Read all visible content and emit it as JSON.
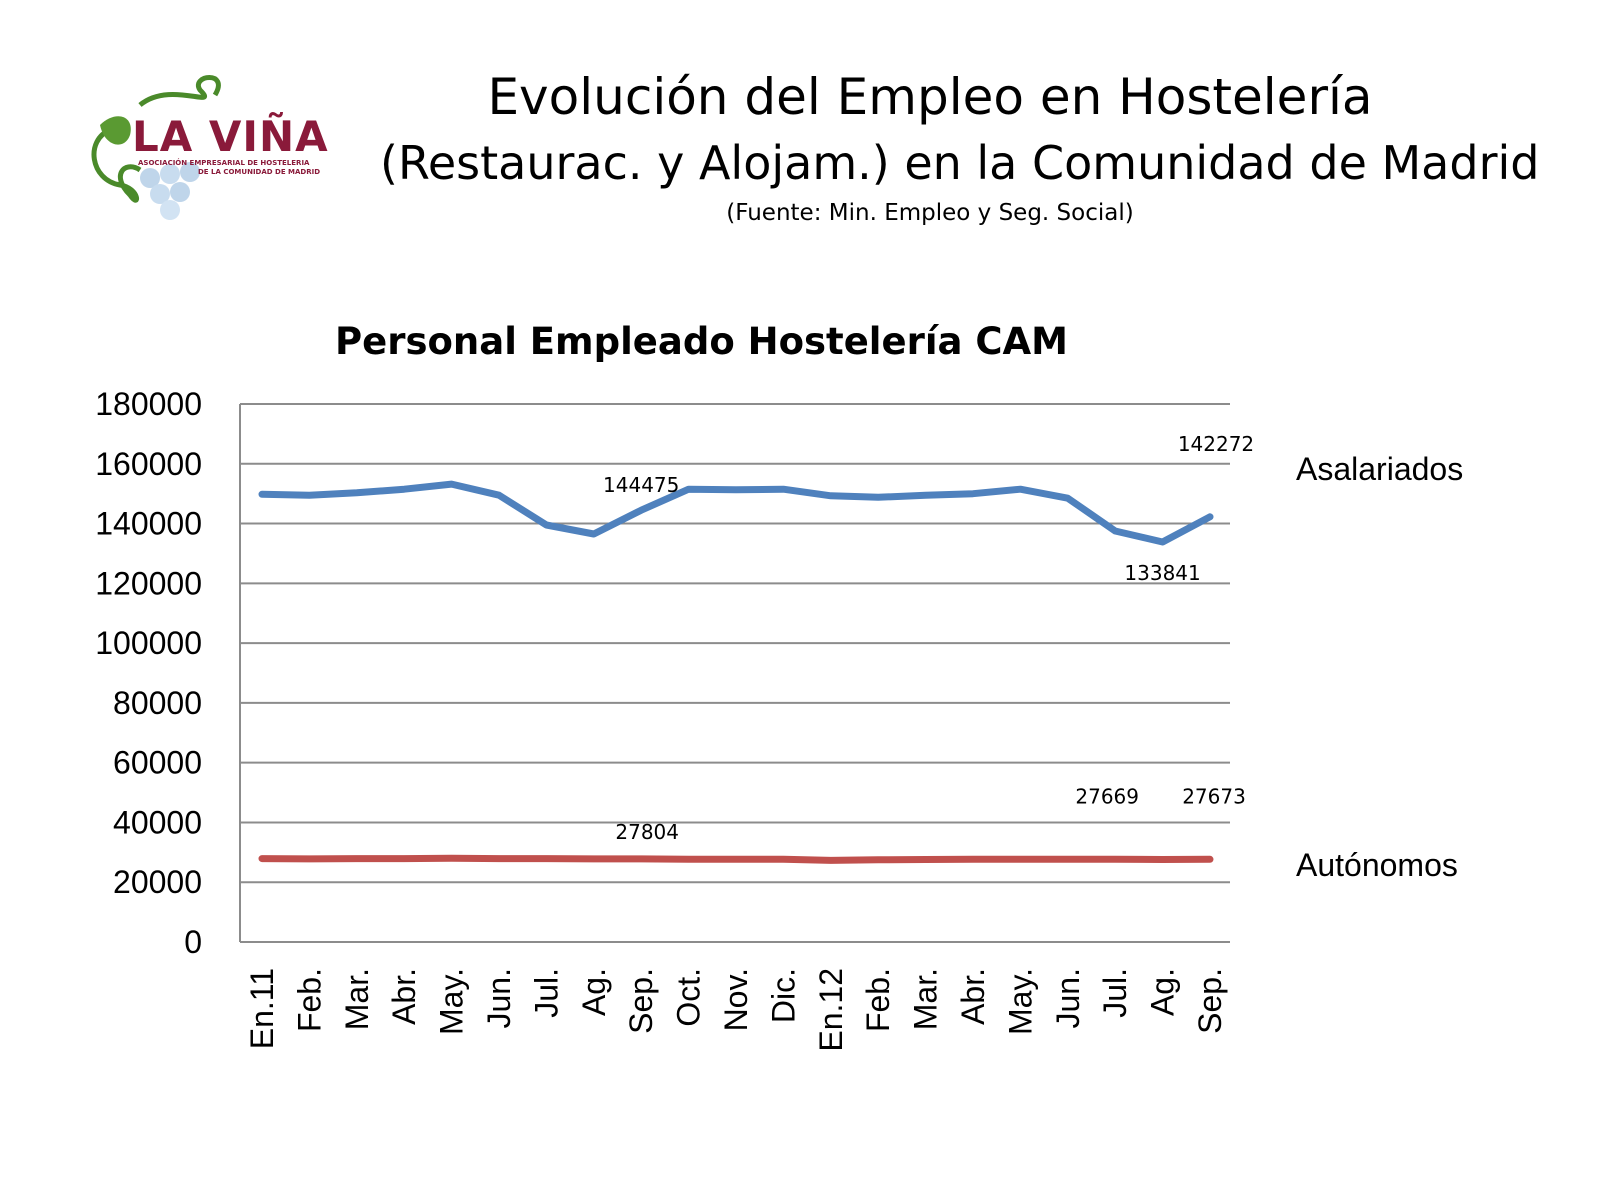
{
  "logo": {
    "name": "LA VIÑA",
    "subtitle_line1": "ASOCIACIÓN EMPRESARIAL DE HOSTELERIA",
    "subtitle_line2": "DE LA COMUNIDAD DE MADRID"
  },
  "header": {
    "title_line1": "Evolución del Empleo en Hostelería",
    "title_line2": "(Restaurac. y Alojam.) en la Comunidad de Madrid",
    "source": "(Fuente: Min. Empleo y Seg. Social)"
  },
  "chart_data": {
    "type": "line",
    "title": "Personal Empleado Hostelería CAM",
    "xlabel": "",
    "ylabel": "",
    "ylim": [
      0,
      180000
    ],
    "yticks": [
      0,
      20000,
      40000,
      60000,
      80000,
      100000,
      120000,
      140000,
      160000,
      180000
    ],
    "grid": true,
    "categories": [
      "En.11",
      "Feb.",
      "Mar.",
      "Abr.",
      "May.",
      "Jun.",
      "Jul.",
      "Ag.",
      "Sep.",
      "Oct.",
      "Nov.",
      "Dic.",
      "En.12",
      "Feb.",
      "Mar.",
      "Abr.",
      "May.",
      "Jun.",
      "Jul.",
      "Ag.",
      "Sep."
    ],
    "series": [
      {
        "name": "Asalariados",
        "color": "#4f81bd",
        "values": [
          149800,
          149500,
          150300,
          151500,
          153200,
          149500,
          139500,
          136500,
          144475,
          151500,
          151300,
          151500,
          149300,
          148800,
          149500,
          150000,
          151500,
          148500,
          137500,
          133841,
          142272
        ],
        "data_labels": [
          {
            "index": 8,
            "text": "144475"
          },
          {
            "index": 19,
            "text": "133841"
          },
          {
            "index": 20,
            "text": "142272"
          }
        ]
      },
      {
        "name": "Autónomos",
        "color": "#c0504d",
        "values": [
          27900,
          27800,
          27900,
          27900,
          28000,
          27900,
          27900,
          27800,
          27804,
          27700,
          27700,
          27700,
          27300,
          27500,
          27600,
          27700,
          27700,
          27700,
          27669,
          27600,
          27673
        ],
        "data_labels": [
          {
            "index": 8,
            "text": "27804"
          },
          {
            "index": 18,
            "text": "27669"
          },
          {
            "index": 20,
            "text": "27673"
          }
        ]
      }
    ]
  }
}
